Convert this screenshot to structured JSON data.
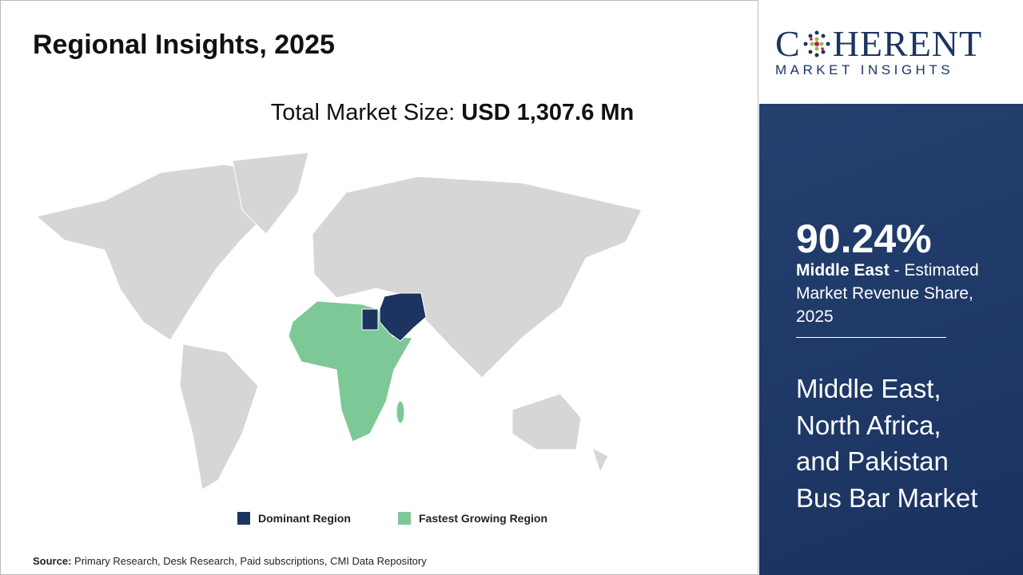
{
  "header": {
    "title": "Regional Insights, 2025"
  },
  "market_size": {
    "label": "Total Market Size:",
    "value": "USD 1,307.6 Mn"
  },
  "legend": [
    {
      "label": "Dominant Region",
      "color": "#1d3461"
    },
    {
      "label": "Fastest Growing Region",
      "color": "#7dc896"
    }
  ],
  "source": {
    "label": "Source:",
    "text": "Primary Research, Desk Research, Paid subscriptions, CMI Data Repository"
  },
  "logo": {
    "name_start": "C",
    "name_end": "HERENT",
    "tagline": "MARKET INSIGHTS"
  },
  "panel": {
    "share": "90.24%",
    "region": "Middle East",
    "description": " - Estimated Market Revenue Share, 2025",
    "market_lines": [
      "Middle East,",
      "North Africa,",
      "and Pakistan",
      "Bus Bar Market"
    ]
  }
}
